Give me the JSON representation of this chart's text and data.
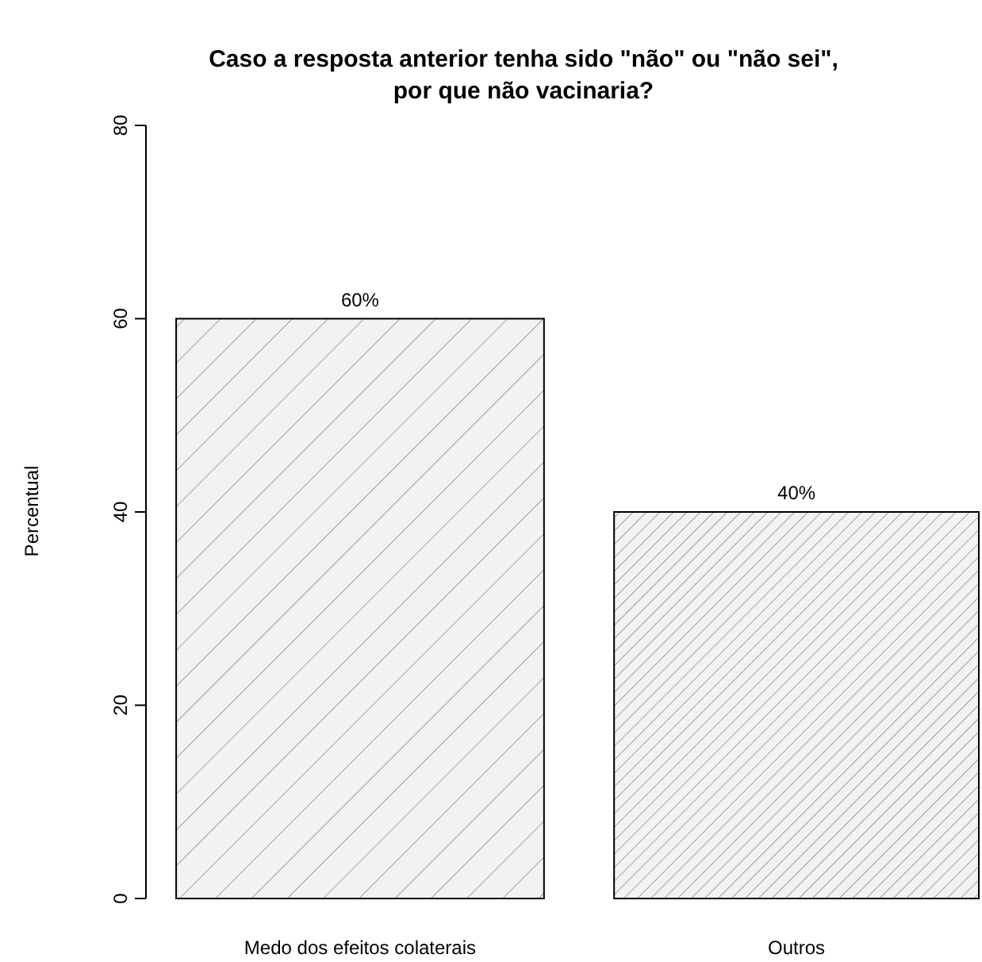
{
  "chart_data": {
    "type": "bar",
    "title": "Caso a resposta anterior tenha sido \"não\" ou \"não sei\",\npor que não vacinaria?",
    "ylabel": "Percentual",
    "categories": [
      "Medo dos efeitos colaterais",
      "Outros"
    ],
    "values": [
      60,
      40
    ],
    "value_labels": [
      "60%",
      "40%"
    ],
    "ylim": [
      0,
      80
    ],
    "yticks": [
      0,
      20,
      40,
      60,
      80
    ],
    "grid": false
  }
}
